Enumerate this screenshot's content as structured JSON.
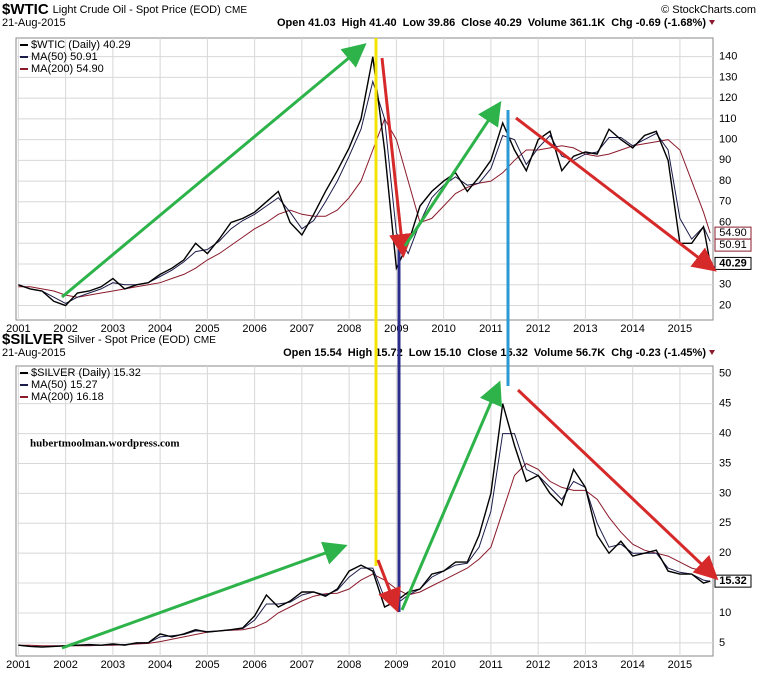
{
  "chart_data": [
    {
      "type": "line",
      "symbol": "$WTIC",
      "title": "Light Crude Oil - Spot Price (EOD)",
      "exchange": "CME",
      "source": "© StockCharts.com",
      "date": "21-Aug-2015",
      "quote": [
        "Open 41.03",
        "High 41.40",
        "Low 39.86",
        "Close 40.29",
        "Volume 361.1K",
        "Chg -0.69 (-1.68%)"
      ],
      "x": [
        2001,
        2001.25,
        2001.5,
        2001.75,
        2002,
        2002.25,
        2002.5,
        2002.75,
        2003,
        2003.25,
        2003.5,
        2003.75,
        2004,
        2004.25,
        2004.5,
        2004.75,
        2005,
        2005.25,
        2005.5,
        2005.75,
        2006,
        2006.25,
        2006.5,
        2006.75,
        2007,
        2007.25,
        2007.5,
        2007.75,
        2008,
        2008.25,
        2008.5,
        2008.75,
        2009,
        2009.25,
        2009.5,
        2009.75,
        2010,
        2010.25,
        2010.5,
        2010.75,
        2011,
        2011.25,
        2011.5,
        2011.75,
        2012,
        2012.25,
        2012.5,
        2012.75,
        2013,
        2013.25,
        2013.5,
        2013.75,
        2014,
        2014.25,
        2014.5,
        2014.75,
        2015,
        2015.25,
        2015.5,
        2015.64
      ],
      "series": [
        {
          "name": "$WTIC (Daily) 40.29",
          "color": "#000000",
          "values": [
            30,
            28,
            27,
            22,
            20,
            26,
            27,
            29,
            33,
            28,
            30,
            31,
            35,
            38,
            42,
            50,
            45,
            52,
            60,
            62,
            65,
            70,
            75,
            60,
            54,
            64,
            75,
            85,
            96,
            110,
            140,
            95,
            38,
            50,
            68,
            75,
            80,
            84,
            75,
            82,
            90,
            108,
            95,
            85,
            100,
            104,
            85,
            92,
            94,
            93,
            105,
            100,
            96,
            102,
            104,
            90,
            50,
            50,
            58,
            40.29
          ]
        },
        {
          "name": "MA(50) 50.91",
          "color": "#1c1c4a",
          "values": [
            30,
            28,
            27,
            24,
            21,
            24,
            26,
            28,
            31,
            30,
            30,
            31,
            34,
            37,
            41,
            46,
            47,
            51,
            57,
            61,
            64,
            68,
            72,
            65,
            57,
            61,
            70,
            80,
            92,
            105,
            128,
            110,
            55,
            45,
            60,
            72,
            78,
            82,
            78,
            79,
            86,
            102,
            100,
            88,
            96,
            102,
            92,
            90,
            93,
            94,
            101,
            101,
            97,
            100,
            103,
            95,
            62,
            52,
            58,
            50.91
          ]
        },
        {
          "name": "MA(200) 54.90",
          "color": "#8b1a2b",
          "values": [
            29,
            29,
            28,
            27,
            25,
            24,
            25,
            26,
            27,
            28,
            29,
            30,
            31,
            33,
            35,
            38,
            42,
            45,
            49,
            53,
            57,
            60,
            64,
            66,
            64,
            63,
            63,
            66,
            72,
            80,
            95,
            110,
            100,
            80,
            60,
            62,
            68,
            74,
            77,
            79,
            80,
            84,
            90,
            95,
            95,
            96,
            97,
            96,
            93,
            92,
            93,
            95,
            97,
            98,
            99,
            100,
            95,
            80,
            65,
            54.9
          ]
        }
      ],
      "end_labels": [
        {
          "value": 54.9,
          "label": "54.90"
        },
        {
          "value": 50.91,
          "label": "50.91"
        },
        {
          "value": 40.29,
          "label": "40.29"
        }
      ],
      "xlim": [
        2000.95,
        2015.7
      ],
      "xticks": [
        2001,
        2002,
        2003,
        2004,
        2005,
        2006,
        2007,
        2008,
        2009,
        2010,
        2011,
        2012,
        2013,
        2014,
        2015
      ],
      "ylim": [
        13,
        149
      ],
      "yticks": [
        20,
        30,
        40,
        50,
        60,
        70,
        80,
        90,
        100,
        110,
        120,
        130,
        140
      ],
      "grid": true
    },
    {
      "type": "line",
      "symbol": "$SILVER",
      "title": "Silver - Spot Price (EOD)",
      "exchange": "CME",
      "date": "21-Aug-2015",
      "quote": [
        "Open 15.54",
        "High 15.72",
        "Low 15.10",
        "Close 15.32",
        "Volume 56.7K",
        "Chg -0.23 (-1.45%)"
      ],
      "annotation": "hubertmoolman.wordpress.com",
      "x": [
        2001,
        2001.25,
        2001.5,
        2001.75,
        2002,
        2002.25,
        2002.5,
        2002.75,
        2003,
        2003.25,
        2003.5,
        2003.75,
        2004,
        2004.25,
        2004.5,
        2004.75,
        2005,
        2005.25,
        2005.5,
        2005.75,
        2006,
        2006.25,
        2006.5,
        2006.75,
        2007,
        2007.25,
        2007.5,
        2007.75,
        2008,
        2008.25,
        2008.5,
        2008.75,
        2009,
        2009.25,
        2009.5,
        2009.75,
        2010,
        2010.25,
        2010.5,
        2010.75,
        2011,
        2011.25,
        2011.5,
        2011.75,
        2012,
        2012.25,
        2012.5,
        2012.75,
        2013,
        2013.25,
        2013.5,
        2013.75,
        2014,
        2014.25,
        2014.5,
        2014.75,
        2015,
        2015.25,
        2015.5,
        2015.64
      ],
      "series": [
        {
          "name": "$SILVER (Daily) 15.32",
          "color": "#000000",
          "values": [
            4.6,
            4.4,
            4.3,
            4.4,
            4.5,
            4.6,
            4.7,
            4.6,
            4.8,
            4.6,
            5.0,
            5.0,
            6.5,
            6.0,
            6.5,
            7.2,
            6.8,
            7.0,
            7.2,
            7.5,
            9.5,
            13.0,
            11.0,
            12.0,
            13.5,
            13.5,
            12.8,
            14.0,
            17.0,
            18.0,
            17.0,
            11.0,
            12.0,
            13.5,
            14.0,
            16.5,
            17.0,
            18.5,
            18.5,
            23,
            30,
            45,
            38,
            32,
            33,
            30,
            28,
            34,
            31,
            23,
            20,
            22,
            19.5,
            20,
            20.5,
            17,
            16.5,
            16.5,
            15,
            15.32
          ]
        },
        {
          "name": "MA(50) 15.27",
          "color": "#1c1c4a",
          "values": [
            4.6,
            4.4,
            4.3,
            4.4,
            4.5,
            4.6,
            4.6,
            4.6,
            4.7,
            4.7,
            4.9,
            5.0,
            6.0,
            6.2,
            6.4,
            7.0,
            6.9,
            7.0,
            7.2,
            7.4,
            8.8,
            11.5,
            11.5,
            11.8,
            13,
            13.5,
            13,
            13.8,
            16,
            17.5,
            17.5,
            12.5,
            11.5,
            13,
            14,
            16,
            17,
            18,
            18.3,
            21,
            27,
            40,
            40,
            34,
            33,
            31,
            29,
            32,
            31,
            25,
            21,
            21.5,
            20,
            20,
            20,
            17.5,
            16.8,
            16.5,
            15.5,
            15.27
          ]
        },
        {
          "name": "MA(200) 16.18",
          "color": "#8b1a2b",
          "values": [
            4.6,
            4.6,
            4.5,
            4.5,
            4.5,
            4.5,
            4.5,
            4.6,
            4.6,
            4.7,
            4.8,
            4.9,
            5.2,
            5.6,
            6.0,
            6.4,
            6.8,
            7.0,
            7.1,
            7.2,
            7.6,
            8.5,
            10,
            11,
            12,
            12.8,
            13.2,
            13.3,
            14,
            15.5,
            16.5,
            15.5,
            14,
            13,
            13.5,
            14.5,
            15.5,
            16.5,
            17.5,
            19,
            21,
            27,
            33,
            35,
            34,
            32,
            31,
            30.5,
            30.5,
            29,
            26,
            23.5,
            21.5,
            20.5,
            20,
            19.5,
            18.5,
            17.5,
            17,
            16.18
          ]
        }
      ],
      "end_labels": [
        {
          "value": 15.32,
          "label": "15.32"
        }
      ],
      "xlim": [
        2000.95,
        2015.7
      ],
      "xticks": [
        2001,
        2002,
        2003,
        2004,
        2005,
        2006,
        2007,
        2008,
        2009,
        2010,
        2011,
        2012,
        2013,
        2014,
        2015
      ],
      "ylim": [
        2.8,
        51.3
      ],
      "yticks": [
        5,
        10,
        15,
        20,
        25,
        30,
        35,
        40,
        45,
        50
      ],
      "grid": true
    }
  ]
}
